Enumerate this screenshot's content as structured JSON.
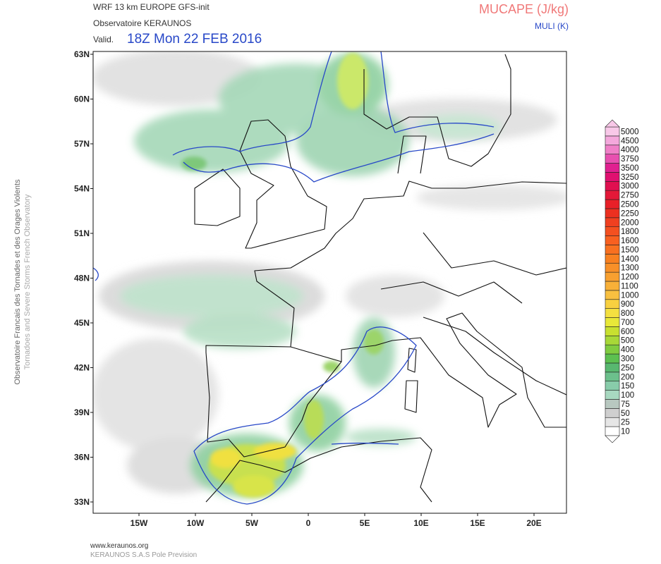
{
  "header": {
    "model": "WRF 13 km EUROPE  GFS-init",
    "org": "Observatoire KERAUNOS",
    "valid_label": "Valid.",
    "valid_time": "18Z Mon 22 FEB 2016",
    "field": "MUCAPE (J/kg)",
    "contour": "MULI (K)"
  },
  "side": {
    "line1": "Observatoire Francais des Tornades et des Orages Violents",
    "line2": "Tornadoes and Severe Storms French Observatory"
  },
  "map": {
    "lat_labels": [
      "63N",
      "60N",
      "57N",
      "54N",
      "51N",
      "48N",
      "45N",
      "42N",
      "39N",
      "36N",
      "33N"
    ],
    "lon_labels": [
      "15W",
      "10W",
      "5W",
      "0",
      "5E",
      "10E",
      "15E",
      "20E"
    ]
  },
  "colorbar": {
    "labels": [
      10,
      25,
      50,
      75,
      100,
      150,
      200,
      250,
      300,
      400,
      500,
      600,
      700,
      800,
      900,
      1000,
      1100,
      1200,
      1300,
      1400,
      1500,
      1600,
      1800,
      2000,
      2250,
      2500,
      2750,
      3000,
      3250,
      3500,
      3750,
      4000,
      4500,
      5000
    ]
  },
  "footer": {
    "site": "www.keraunos.org",
    "company": "KERAUNOS S.A.S Pole Prevision"
  }
}
